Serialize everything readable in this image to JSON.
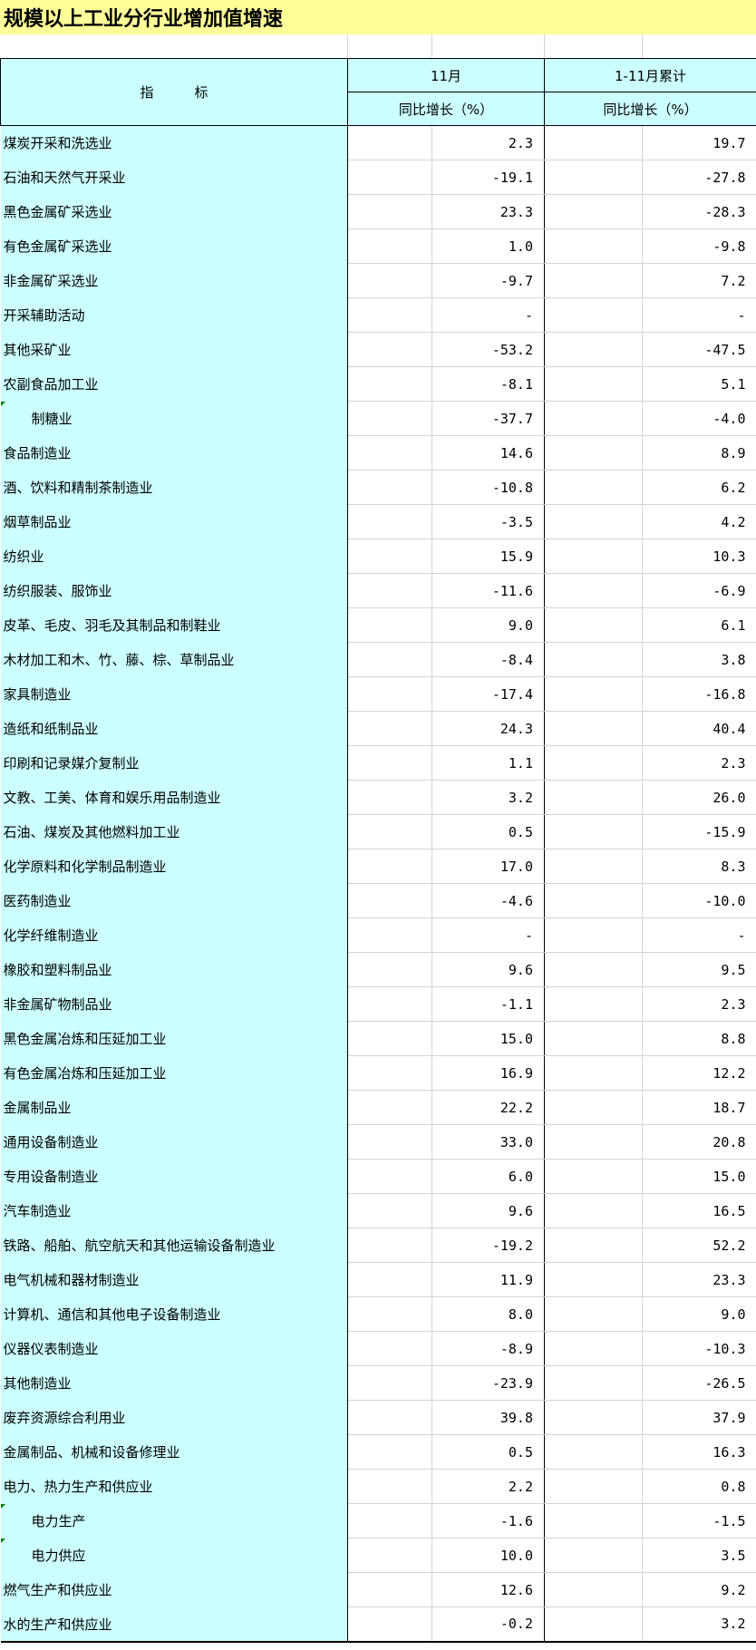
{
  "title": "规模以上工业分行业增加值增速",
  "header": {
    "indicator": "指　　　标",
    "col_month": "11月",
    "col_cum": "1-11月累计",
    "sub_month": "同比增长（%）",
    "sub_cum": "同比增长（%）"
  },
  "rows": [
    {
      "label": "煤炭开采和洗选业",
      "m": "2.3",
      "c": "19.7"
    },
    {
      "label": "石油和天然气开采业",
      "m": "-19.1",
      "c": "-27.8"
    },
    {
      "label": "黑色金属矿采选业",
      "m": "23.3",
      "c": "-28.3"
    },
    {
      "label": "有色金属矿采选业",
      "m": "1.0",
      "c": "-9.8"
    },
    {
      "label": "非金属矿采选业",
      "m": "-9.7",
      "c": "7.2"
    },
    {
      "label": "开采辅助活动",
      "m": "-",
      "c": "-"
    },
    {
      "label": "其他采矿业",
      "m": "-53.2",
      "c": "-47.5"
    },
    {
      "label": "农副食品加工业",
      "m": "-8.1",
      "c": "5.1"
    },
    {
      "label": "制糖业",
      "m": "-37.7",
      "c": "-4.0",
      "sub": true
    },
    {
      "label": "食品制造业",
      "m": "14.6",
      "c": "8.9"
    },
    {
      "label": "酒、饮料和精制茶制造业",
      "m": "-10.8",
      "c": "6.2"
    },
    {
      "label": "烟草制品业",
      "m": "-3.5",
      "c": "4.2"
    },
    {
      "label": "纺织业",
      "m": "15.9",
      "c": "10.3"
    },
    {
      "label": "纺织服装、服饰业",
      "m": "-11.6",
      "c": "-6.9"
    },
    {
      "label": "皮革、毛皮、羽毛及其制品和制鞋业",
      "m": "9.0",
      "c": "6.1"
    },
    {
      "label": "木材加工和木、竹、藤、棕、草制品业",
      "m": "-8.4",
      "c": "3.8"
    },
    {
      "label": "家具制造业",
      "m": "-17.4",
      "c": "-16.8"
    },
    {
      "label": "造纸和纸制品业",
      "m": "24.3",
      "c": "40.4"
    },
    {
      "label": "印刷和记录媒介复制业",
      "m": "1.1",
      "c": "2.3"
    },
    {
      "label": "文教、工美、体育和娱乐用品制造业",
      "m": "3.2",
      "c": "26.0"
    },
    {
      "label": "石油、煤炭及其他燃料加工业",
      "m": "0.5",
      "c": "-15.9"
    },
    {
      "label": "化学原料和化学制品制造业",
      "m": "17.0",
      "c": "8.3"
    },
    {
      "label": "医药制造业",
      "m": "-4.6",
      "c": "-10.0"
    },
    {
      "label": "化学纤维制造业",
      "m": "-",
      "c": "-"
    },
    {
      "label": "橡胶和塑料制品业",
      "m": "9.6",
      "c": "9.5"
    },
    {
      "label": "非金属矿物制品业",
      "m": "-1.1",
      "c": "2.3"
    },
    {
      "label": "黑色金属冶炼和压延加工业",
      "m": "15.0",
      "c": "8.8"
    },
    {
      "label": "有色金属冶炼和压延加工业",
      "m": "16.9",
      "c": "12.2"
    },
    {
      "label": "金属制品业",
      "m": "22.2",
      "c": "18.7"
    },
    {
      "label": "通用设备制造业",
      "m": "33.0",
      "c": "20.8"
    },
    {
      "label": "专用设备制造业",
      "m": "6.0",
      "c": "15.0"
    },
    {
      "label": "汽车制造业",
      "m": "9.6",
      "c": "16.5"
    },
    {
      "label": "铁路、船舶、航空航天和其他运输设备制造业",
      "m": "-19.2",
      "c": "52.2"
    },
    {
      "label": "电气机械和器材制造业",
      "m": "11.9",
      "c": "23.3"
    },
    {
      "label": "计算机、通信和其他电子设备制造业",
      "m": "8.0",
      "c": "9.0"
    },
    {
      "label": "仪器仪表制造业",
      "m": "-8.9",
      "c": "-10.3"
    },
    {
      "label": "其他制造业",
      "m": "-23.9",
      "c": "-26.5"
    },
    {
      "label": "废弃资源综合利用业",
      "m": "39.8",
      "c": "37.9"
    },
    {
      "label": "金属制品、机械和设备修理业",
      "m": "0.5",
      "c": "16.3"
    },
    {
      "label": "电力、热力生产和供应业",
      "m": "2.2",
      "c": "0.8"
    },
    {
      "label": "电力生产",
      "m": "-1.6",
      "c": "-1.5",
      "sub": true
    },
    {
      "label": "电力供应",
      "m": "10.0",
      "c": "3.5",
      "sub": true
    },
    {
      "label": "燃气生产和供应业",
      "m": "12.6",
      "c": "9.2"
    },
    {
      "label": "水的生产和供应业",
      "m": "-0.2",
      "c": "3.2"
    }
  ],
  "colors": {
    "title_bg": "#ffff99",
    "label_bg": "#ccffff",
    "grid": "#d4d4d4",
    "marker": "#008000"
  }
}
